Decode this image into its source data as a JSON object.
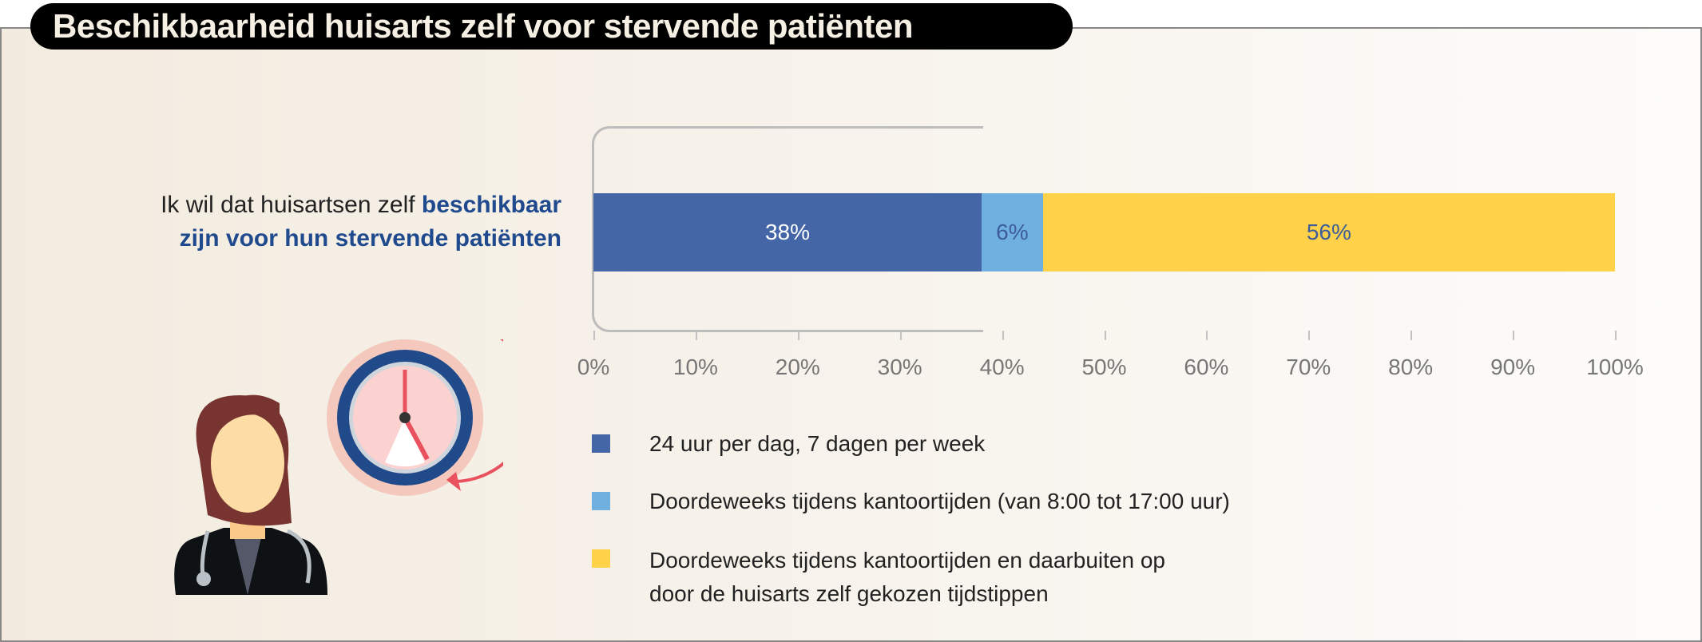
{
  "title": "Beschikbaarheid huisarts zelf voor stervende patiënten",
  "question": {
    "line1_plain": "Ik wil dat huisartsen zelf ",
    "line1_bold": "beschikbaar",
    "line2_bold": "zijn voor hun stervende patiënten"
  },
  "chart_data": {
    "type": "bar",
    "orientation": "horizontal",
    "stacked": true,
    "categories": [
      "Ik wil dat huisartsen zelf beschikbaar zijn voor hun stervende patiënten"
    ],
    "series": [
      {
        "name": "24 uur per dag, 7 dagen per week",
        "values": [
          38
        ],
        "label": "38%",
        "color": "#4466a6",
        "label_color": "#ffffff"
      },
      {
        "name": "Doordeweeks tijdens kantoortijden (van 8:00 tot 17:00 uur)",
        "values": [
          6
        ],
        "label": "6%",
        "color": "#6fb0e0",
        "label_color": "#3d5c9a"
      },
      {
        "name": "Doordeweeks tijdens kantoortijden en daarbuiten op door de huisarts zelf gekozen tijdstippen",
        "values": [
          56
        ],
        "label": "56%",
        "color": "#ffd24a",
        "label_color": "#3d5c9a"
      }
    ],
    "xlim": [
      0,
      100
    ],
    "xticks": [
      "0%",
      "10%",
      "20%",
      "30%",
      "40%",
      "50%",
      "60%",
      "70%",
      "80%",
      "90%",
      "100%"
    ],
    "legend": {
      "placement": "bottom",
      "items": [
        "24 uur per dag, 7 dagen per week",
        "Doordeweeks tijdens kantoortijden (van 8:00 tot 17:00 uur)",
        "Doordeweeks tijdens kantoortijden en daarbuiten op",
        "door de huisarts zelf gekozen tijdstippen"
      ]
    }
  }
}
